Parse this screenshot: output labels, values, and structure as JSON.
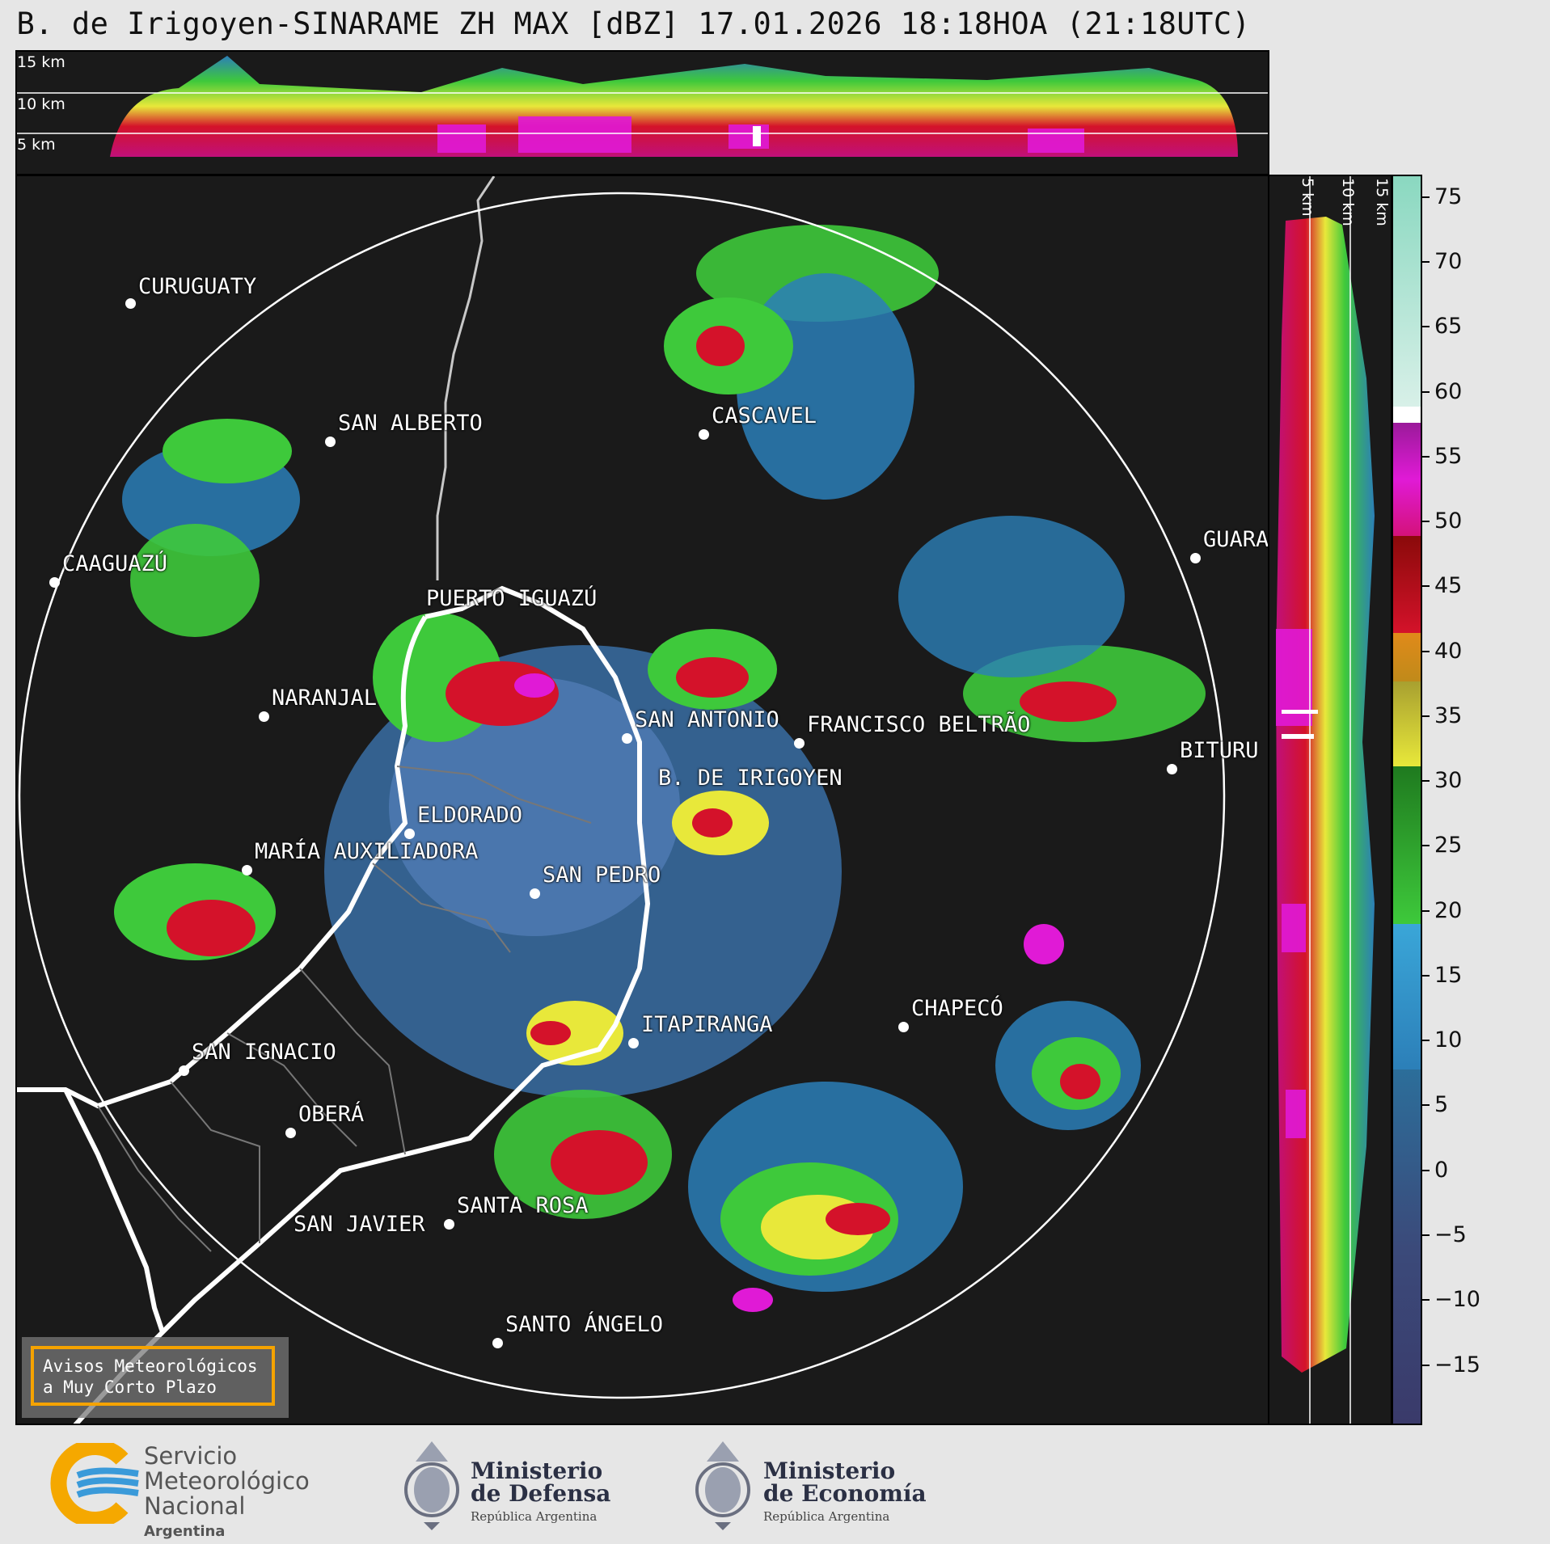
{
  "header": {
    "title": "B. de Irigoyen-SINARAME ZH MAX [dBZ] 17.01.2026 18:18HOA (21:18UTC)"
  },
  "top_panel": {
    "altitude_labels": [
      "15 km",
      "10 km",
      "5 km"
    ]
  },
  "side_panel": {
    "altitude_labels": [
      "5 km",
      "10 km",
      "15 km"
    ]
  },
  "map": {
    "cities": [
      {
        "name": "CURUGUATY"
      },
      {
        "name": "SAN ALBERTO"
      },
      {
        "name": "CASCAVEL"
      },
      {
        "name": "CAAGUAZÚ"
      },
      {
        "name": "GUARA"
      },
      {
        "name": "PUERTO IGUAZÚ"
      },
      {
        "name": "NARANJAL"
      },
      {
        "name": "SAN ANTONIO"
      },
      {
        "name": "FRANCISCO BELTRÃO"
      },
      {
        "name": "BITURU"
      },
      {
        "name": "B. DE IRIGOYEN"
      },
      {
        "name": "ELDORADO"
      },
      {
        "name": "MARÍA AUXILIADORA"
      },
      {
        "name": "SAN PEDRO"
      },
      {
        "name": "CHAPECÓ"
      },
      {
        "name": "ITAPIRANGA"
      },
      {
        "name": "SAN IGNACIO"
      },
      {
        "name": "OBERÁ"
      },
      {
        "name": "SAN JAVIER"
      },
      {
        "name": "SANTA ROSA"
      },
      {
        "name": "SANTO ÁNGELO"
      }
    ]
  },
  "alert": {
    "line1": "Avisos Meteorológicos",
    "line2": "a Muy Corto Plazo"
  },
  "colorbar": {
    "unit": "dBZ",
    "ticks": [
      "75",
      "70",
      "65",
      "60",
      "55",
      "50",
      "45",
      "40",
      "35",
      "30",
      "25",
      "20",
      "15",
      "10",
      "5",
      "0",
      "−5",
      "−10",
      "−15"
    ],
    "colors": {
      "below_0": "#3b4a7a",
      "blue": "#2c7fb8",
      "cyan": "#3aa6d8",
      "green": "#3ec93b",
      "dark_green": "#1f7a1f",
      "yellow": "#e8e83a",
      "orange": "#e08a1a",
      "red": "#d4122a",
      "magenta": "#e01ad6",
      "white": "#ffffff",
      "teal": "#8ad8c0"
    }
  },
  "footer": {
    "smn": {
      "line1": "Servicio",
      "line2": "Meteorológico",
      "line3": "Nacional",
      "sub": "Argentina"
    },
    "defensa": {
      "line1": "Ministerio",
      "line2": "de Defensa",
      "sub": "República Argentina"
    },
    "economia": {
      "line1": "Ministerio",
      "line2": "de Economía",
      "sub": "República Argentina"
    }
  }
}
